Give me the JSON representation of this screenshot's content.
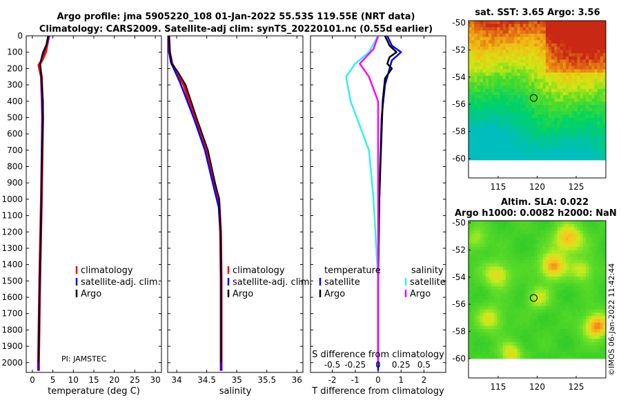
{
  "title": {
    "line1": "Argo profile: jma 5905220_108 01-Jan-2022 55.53S 119.55E (NRT data)",
    "line2": "Climatology: CARS2009. Satellite-adj clim: synTS_20220101.nc (0.55d earlier)"
  },
  "pi_label": "PI: JAMSTEC",
  "watermark": "©IMOS 06-Jan-2022 11:42:44",
  "colors": {
    "climatology": "#ff0000",
    "satellite": "#0000ff",
    "argo": "#000000",
    "sat_salinity": "#33eeee",
    "argo_salinity": "#ff00ff"
  },
  "chart_data": [
    {
      "type": "line",
      "id": "temperature",
      "xlabel": "temperature (deg C)",
      "xlim": [
        -1.5,
        31.5
      ],
      "xticks": [
        "0",
        "5",
        "10",
        "15",
        "20",
        "25",
        "30"
      ],
      "ylim": [
        0,
        2060
      ],
      "yticks": [
        "0",
        "100",
        "200",
        "300",
        "400",
        "500",
        "600",
        "700",
        "800",
        "900",
        "1000",
        "1100",
        "1200",
        "1300",
        "1400",
        "1500",
        "1600",
        "1700",
        "1800",
        "1900",
        "2000"
      ],
      "legend": [
        "climatology",
        "satellite-adj. clim.",
        "Argo"
      ],
      "series": [
        {
          "name": "climatology",
          "points": [
            [
              4.0,
              0
            ],
            [
              3.2,
              100
            ],
            [
              2.3,
              150
            ],
            [
              1.6,
              180
            ],
            [
              2.2,
              250
            ],
            [
              2.4,
              400
            ],
            [
              2.5,
              500
            ],
            [
              2.2,
              1000
            ],
            [
              1.8,
              1500
            ],
            [
              1.5,
              2000
            ],
            [
              1.5,
              2050
            ]
          ]
        },
        {
          "name": "satellite-adj. clim.",
          "points": [
            [
              4.0,
              0
            ],
            [
              3.5,
              50
            ],
            [
              2.6,
              100
            ],
            [
              1.9,
              170
            ],
            [
              2.2,
              250
            ],
            [
              2.4,
              400
            ],
            [
              2.4,
              500
            ],
            [
              2.2,
              1000
            ],
            [
              1.8,
              1500
            ],
            [
              1.5,
              2000
            ],
            [
              1.5,
              2050
            ]
          ]
        },
        {
          "name": "Argo",
          "points": [
            [
              3.8,
              0
            ],
            [
              3.4,
              60
            ],
            [
              2.7,
              100
            ],
            [
              1.9,
              170
            ],
            [
              2.2,
              240
            ],
            [
              2.6,
              400
            ],
            [
              2.6,
              500
            ],
            [
              2.3,
              800
            ],
            [
              2.2,
              1000
            ],
            [
              1.8,
              1500
            ],
            [
              1.5,
              2000
            ]
          ]
        }
      ]
    },
    {
      "type": "line",
      "id": "salinity",
      "xlabel": "salinity",
      "xlim": [
        33.85,
        36.1
      ],
      "xticks": [
        "34",
        "34.5",
        "35",
        "35.5",
        "36"
      ],
      "ylim": [
        0,
        2060
      ],
      "legend": [
        "climatology",
        "satellite-adj. clim.",
        "Argo"
      ],
      "series": [
        {
          "name": "climatology",
          "points": [
            [
              33.87,
              0
            ],
            [
              33.88,
              100
            ],
            [
              33.92,
              170
            ],
            [
              34.0,
              220
            ],
            [
              34.12,
              300
            ],
            [
              34.3,
              500
            ],
            [
              34.5,
              700
            ],
            [
              34.62,
              900
            ],
            [
              34.7,
              1000
            ],
            [
              34.73,
              1200
            ],
            [
              34.74,
              1500
            ],
            [
              34.74,
              2050
            ]
          ]
        },
        {
          "name": "satellite-adj. clim.",
          "points": [
            [
              33.86,
              0
            ],
            [
              33.88,
              100
            ],
            [
              33.9,
              160
            ],
            [
              33.95,
              200
            ],
            [
              34.05,
              280
            ],
            [
              34.28,
              500
            ],
            [
              34.47,
              700
            ],
            [
              34.6,
              900
            ],
            [
              34.7,
              1050
            ],
            [
              34.73,
              1200
            ],
            [
              34.74,
              1500
            ],
            [
              34.74,
              2050
            ]
          ]
        },
        {
          "name": "Argo",
          "points": [
            [
              33.87,
              0
            ],
            [
              33.89,
              100
            ],
            [
              33.92,
              170
            ],
            [
              34.02,
              220
            ],
            [
              34.15,
              300
            ],
            [
              34.33,
              500
            ],
            [
              34.52,
              700
            ],
            [
              34.64,
              900
            ],
            [
              34.71,
              1000
            ],
            [
              34.73,
              1200
            ],
            [
              34.74,
              1500
            ],
            [
              34.74,
              2000
            ]
          ]
        }
      ]
    },
    {
      "type": "line",
      "id": "difference",
      "xlabel": "T difference from climatology",
      "xlabel_top": "S difference from climatology",
      "xlim": [
        -2.95,
        2.95
      ],
      "xticks": [
        "-2",
        "-1",
        "0",
        "1",
        "2"
      ],
      "s_ticks": [
        "-0.5",
        "-0.25",
        "0",
        "0.25",
        "0.5"
      ],
      "ylim": [
        0,
        2060
      ],
      "legend_titles": [
        "temperature",
        "salinity"
      ],
      "legend_temperature": [
        "satellite",
        "Argo"
      ],
      "legend_salinity": [
        "satellite",
        "Argo"
      ],
      "series": [
        {
          "name": "T satellite",
          "points": [
            [
              0.4,
              0
            ],
            [
              0.6,
              60
            ],
            [
              1.0,
              100
            ],
            [
              0.6,
              150
            ],
            [
              0.5,
              200
            ],
            [
              0.3,
              300
            ],
            [
              0.15,
              500
            ],
            [
              0.05,
              1000
            ],
            [
              0.0,
              1500
            ],
            [
              0.0,
              2050
            ]
          ]
        },
        {
          "name": "T Argo",
          "points": [
            [
              0.3,
              0
            ],
            [
              0.5,
              60
            ],
            [
              0.8,
              100
            ],
            [
              0.5,
              130
            ],
            [
              0.4,
              170
            ],
            [
              0.6,
              200
            ],
            [
              0.3,
              260
            ],
            [
              0.2,
              400
            ],
            [
              0.15,
              600
            ],
            [
              0.1,
              800
            ],
            [
              0.05,
              1000
            ],
            [
              0.0,
              1500
            ],
            [
              0.0,
              2000
            ]
          ]
        },
        {
          "name": "S satellite",
          "points": [
            [
              0.0,
              0
            ],
            [
              -0.1,
              100
            ],
            [
              -0.25,
              170
            ],
            [
              -0.35,
              250
            ],
            [
              -0.3,
              400
            ],
            [
              -0.1,
              700
            ],
            [
              -0.05,
              1000
            ],
            [
              0.0,
              1500
            ],
            [
              0.0,
              2000
            ]
          ]
        },
        {
          "name": "S Argo",
          "points": [
            [
              0.0,
              0
            ],
            [
              -0.05,
              80
            ],
            [
              -0.2,
              170
            ],
            [
              -0.1,
              250
            ],
            [
              0.0,
              400
            ],
            [
              0.0,
              2000
            ]
          ]
        }
      ]
    },
    {
      "type": "heatmap",
      "id": "sst",
      "title": "sat. SST: 3.65 Argo: 3.56",
      "xticks": [
        "115",
        "120",
        "125"
      ],
      "yticks": [
        "-50",
        "-52",
        "-54",
        "-56",
        "-58",
        "-60"
      ],
      "marker": [
        119.55,
        -55.53
      ]
    },
    {
      "type": "heatmap",
      "id": "sla",
      "title_line1": "Altim. SLA: 0.022",
      "title_line2": "Argo h1000: 0.0082 h2000: NaN",
      "xticks": [
        "115",
        "120",
        "125"
      ],
      "yticks": [
        "-50",
        "-52",
        "-54",
        "-56",
        "-58",
        "-60"
      ],
      "marker": [
        119.55,
        -55.53
      ]
    }
  ]
}
